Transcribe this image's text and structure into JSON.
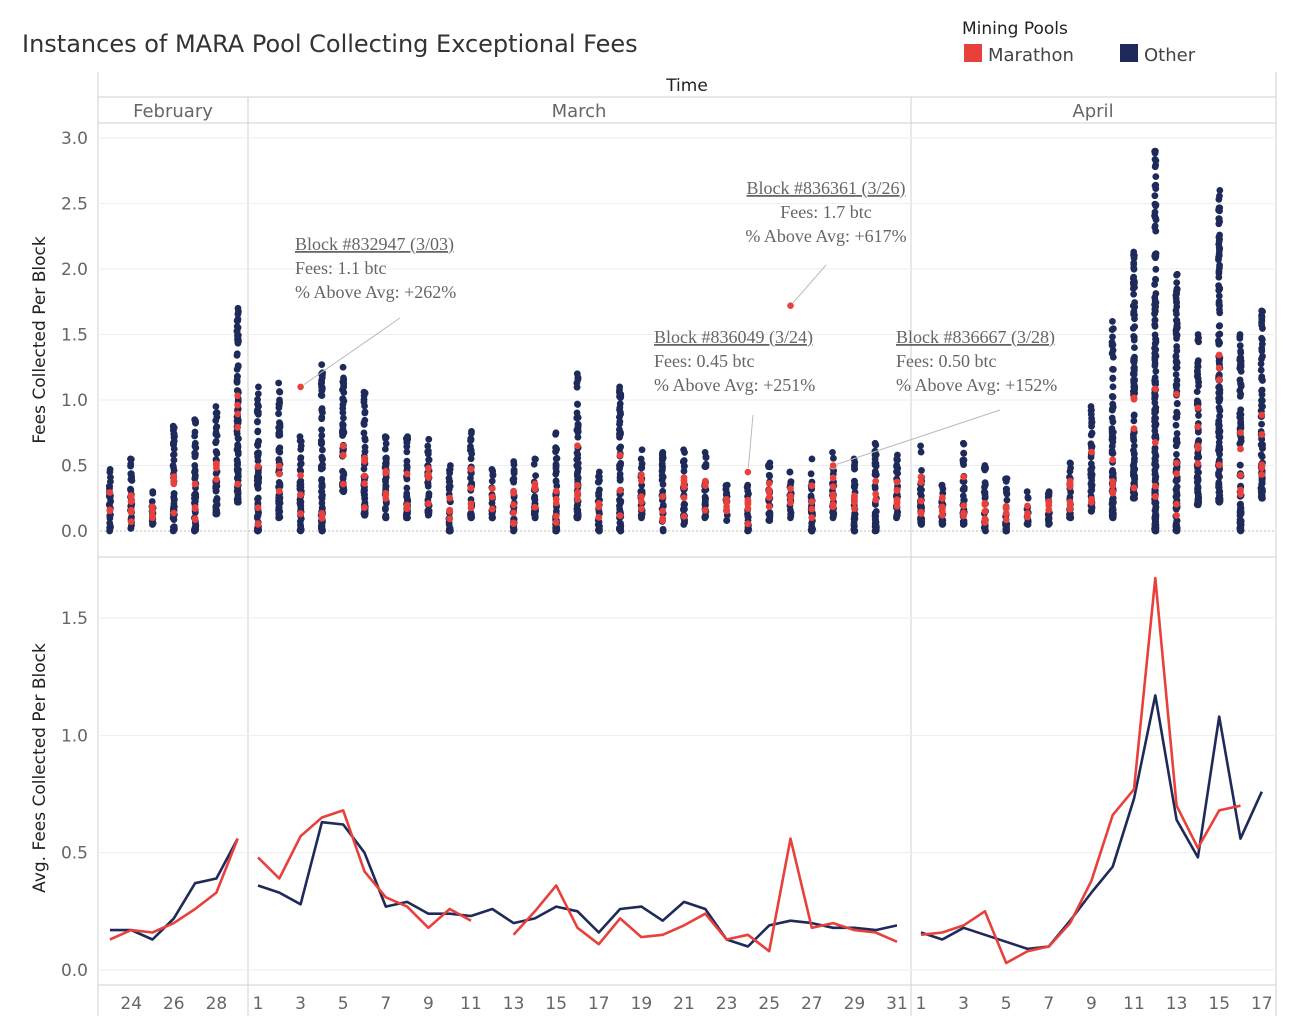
{
  "title": "Instances of MARA Pool Collecting Exceptional Fees",
  "legend": {
    "title": "Mining Pools",
    "items": [
      {
        "label": "Marathon",
        "color": "#e8413c"
      },
      {
        "label": "Other",
        "color": "#1e2a5a"
      }
    ]
  },
  "x_axis_title": "Time",
  "months": [
    {
      "label": "February"
    },
    {
      "label": "March"
    },
    {
      "label": "April"
    }
  ],
  "chart_data": [
    {
      "type": "scatter",
      "ylabel": "Fees Collected Per Block",
      "ylim": [
        0.0,
        3.0
      ],
      "yticks": [
        "0.0",
        "0.5",
        "1.0",
        "1.5",
        "2.0",
        "2.5",
        "3.0"
      ],
      "days": [
        "2/23",
        "2/24",
        "2/25",
        "2/26",
        "2/27",
        "2/28",
        "2/29",
        "3/1",
        "3/2",
        "3/3",
        "3/4",
        "3/5",
        "3/6",
        "3/7",
        "3/8",
        "3/9",
        "3/10",
        "3/11",
        "3/12",
        "3/13",
        "3/14",
        "3/15",
        "3/16",
        "3/17",
        "3/18",
        "3/19",
        "3/20",
        "3/21",
        "3/22",
        "3/23",
        "3/24",
        "3/25",
        "3/26",
        "3/27",
        "3/28",
        "3/29",
        "3/30",
        "3/31",
        "4/1",
        "4/2",
        "4/3",
        "4/4",
        "4/5",
        "4/6",
        "4/7",
        "4/8",
        "4/9",
        "4/10",
        "4/11",
        "4/12",
        "4/13",
        "4/14",
        "4/15",
        "4/16",
        "4/17"
      ],
      "other_range": [
        [
          0.0,
          0.47
        ],
        [
          0.02,
          0.55
        ],
        [
          0.05,
          0.3
        ],
        [
          0.0,
          0.8
        ],
        [
          0.0,
          0.85
        ],
        [
          0.13,
          0.95
        ],
        [
          0.22,
          1.7
        ],
        [
          0.0,
          1.1
        ],
        [
          0.1,
          1.13
        ],
        [
          0.0,
          0.72
        ],
        [
          0.0,
          1.27
        ],
        [
          0.3,
          1.25
        ],
        [
          0.12,
          1.06
        ],
        [
          0.1,
          0.72
        ],
        [
          0.1,
          0.72
        ],
        [
          0.12,
          0.7
        ],
        [
          0.0,
          0.5
        ],
        [
          0.1,
          0.76
        ],
        [
          0.1,
          0.47
        ],
        [
          0.0,
          0.53
        ],
        [
          0.1,
          0.55
        ],
        [
          0.0,
          0.75
        ],
        [
          0.1,
          1.2
        ],
        [
          0.0,
          0.45
        ],
        [
          0.0,
          1.1
        ],
        [
          0.1,
          0.62
        ],
        [
          0.0,
          0.6
        ],
        [
          0.05,
          0.62
        ],
        [
          0.1,
          0.6
        ],
        [
          0.08,
          0.35
        ],
        [
          0.0,
          0.35
        ],
        [
          0.08,
          0.52
        ],
        [
          0.1,
          0.45
        ],
        [
          0.0,
          0.55
        ],
        [
          0.1,
          0.6
        ],
        [
          0.0,
          0.55
        ],
        [
          0.0,
          0.67
        ],
        [
          0.1,
          0.58
        ],
        [
          0.05,
          0.65
        ],
        [
          0.05,
          0.35
        ],
        [
          0.05,
          0.67
        ],
        [
          0.0,
          0.5
        ],
        [
          0.0,
          0.4
        ],
        [
          0.05,
          0.3
        ],
        [
          0.05,
          0.3
        ],
        [
          0.1,
          0.52
        ],
        [
          0.15,
          0.95
        ],
        [
          0.1,
          1.6
        ],
        [
          0.25,
          2.13
        ],
        [
          0.0,
          2.9
        ],
        [
          0.0,
          1.96
        ],
        [
          0.2,
          1.5
        ],
        [
          0.22,
          2.6
        ],
        [
          0.0,
          1.5
        ],
        [
          0.25,
          1.68
        ]
      ],
      "highlights": [
        {
          "block": "Block #832947 (3/03)",
          "fees": "Fees: 1.1 btc",
          "above": "% Above Avg: +262%",
          "day": "3/3",
          "value": 1.1
        },
        {
          "block": "Block #836361 (3/26)",
          "fees": "Fees: 1.7 btc",
          "above": "% Above Avg: +617%",
          "day": "3/26",
          "value": 1.72
        },
        {
          "block": "Block #836049 (3/24)",
          "fees": "Fees: 0.45 btc",
          "above": "% Above Avg: +251%",
          "day": "3/24",
          "value": 0.45
        },
        {
          "block": "Block #836667 (3/28)",
          "fees": "Fees: 0.50 btc",
          "above": "% Above Avg: +152%",
          "day": "3/28",
          "value": 0.5
        }
      ]
    },
    {
      "type": "line",
      "ylabel": "Avg. Fees Collected Per Block",
      "ylim": [
        0.0,
        1.7
      ],
      "yticks": [
        "0.0",
        "0.5",
        "1.0",
        "1.5"
      ],
      "xticks": [
        "24",
        "26",
        "28",
        "1",
        "3",
        "5",
        "7",
        "9",
        "11",
        "13",
        "15",
        "17",
        "19",
        "21",
        "23",
        "25",
        "27",
        "29",
        "31",
        "1",
        "3",
        "5",
        "7",
        "9",
        "11",
        "13",
        "15",
        "17"
      ],
      "series": [
        {
          "name": "Marathon",
          "color": "#e8413c",
          "segments": [
            {
              "x": [
                "2/23",
                "2/24",
                "2/25",
                "2/26",
                "2/27",
                "2/28",
                "2/29"
              ],
              "y": [
                0.13,
                0.17,
                0.16,
                0.2,
                0.26,
                0.33,
                0.56
              ]
            },
            {
              "x": [
                "3/1",
                "3/2",
                "3/3",
                "3/4",
                "3/5",
                "3/6",
                "3/7",
                "3/8",
                "3/9",
                "3/10",
                "3/11"
              ],
              "y": [
                0.48,
                0.39,
                0.57,
                0.65,
                0.68,
                0.42,
                0.31,
                0.27,
                0.18,
                0.26,
                0.21
              ]
            },
            {
              "x": [
                "3/13",
                "3/14",
                "3/15",
                "3/16",
                "3/17",
                "3/18",
                "3/19",
                "3/20",
                "3/21",
                "3/22",
                "3/23",
                "3/24",
                "3/25",
                "3/26",
                "3/27",
                "3/28",
                "3/29",
                "3/30",
                "3/31"
              ],
              "y": [
                0.15,
                0.25,
                0.36,
                0.18,
                0.11,
                0.22,
                0.14,
                0.15,
                0.19,
                0.24,
                0.13,
                0.15,
                0.08,
                0.56,
                0.18,
                0.2,
                0.17,
                0.16,
                0.12
              ]
            },
            {
              "x": [
                "4/1",
                "4/2",
                "4/3",
                "4/4",
                "4/5",
                "4/6",
                "4/7",
                "4/8",
                "4/9",
                "4/10",
                "4/11",
                "4/12",
                "4/13",
                "4/14",
                "4/15",
                "4/16"
              ],
              "y": [
                0.15,
                0.16,
                0.19,
                0.25,
                0.03,
                0.08,
                0.1,
                0.2,
                0.38,
                0.66,
                0.77,
                1.67,
                0.7,
                0.52,
                0.68,
                0.7
              ]
            }
          ]
        },
        {
          "name": "Other",
          "color": "#1e2a5a",
          "segments": [
            {
              "x": [
                "2/23",
                "2/24",
                "2/25",
                "2/26",
                "2/27",
                "2/28",
                "2/29"
              ],
              "y": [
                0.17,
                0.17,
                0.13,
                0.22,
                0.37,
                0.39,
                0.56
              ]
            },
            {
              "x": [
                "3/1",
                "3/2",
                "3/3",
                "3/4",
                "3/5",
                "3/6",
                "3/7",
                "3/8",
                "3/9",
                "3/10",
                "3/11",
                "3/12",
                "3/13",
                "3/14",
                "3/15",
                "3/16",
                "3/17",
                "3/18",
                "3/19",
                "3/20",
                "3/21",
                "3/22",
                "3/23",
                "3/24",
                "3/25",
                "3/26",
                "3/27",
                "3/28",
                "3/29",
                "3/30",
                "3/31"
              ],
              "y": [
                0.36,
                0.33,
                0.28,
                0.63,
                0.62,
                0.5,
                0.27,
                0.29,
                0.24,
                0.24,
                0.23,
                0.26,
                0.2,
                0.22,
                0.27,
                0.25,
                0.16,
                0.26,
                0.27,
                0.21,
                0.29,
                0.26,
                0.13,
                0.1,
                0.19,
                0.21,
                0.2,
                0.18,
                0.18,
                0.17,
                0.19
              ]
            },
            {
              "x": [
                "4/1",
                "4/2",
                "4/3",
                "4/4",
                "4/5",
                "4/6",
                "4/7",
                "4/8",
                "4/9",
                "4/10",
                "4/11",
                "4/12",
                "4/13",
                "4/14",
                "4/15",
                "4/16",
                "4/17"
              ],
              "y": [
                0.16,
                0.13,
                0.18,
                0.15,
                0.12,
                0.09,
                0.1,
                0.21,
                0.33,
                0.44,
                0.73,
                1.17,
                0.64,
                0.48,
                1.08,
                0.56,
                0.76
              ]
            }
          ]
        }
      ]
    }
  ]
}
